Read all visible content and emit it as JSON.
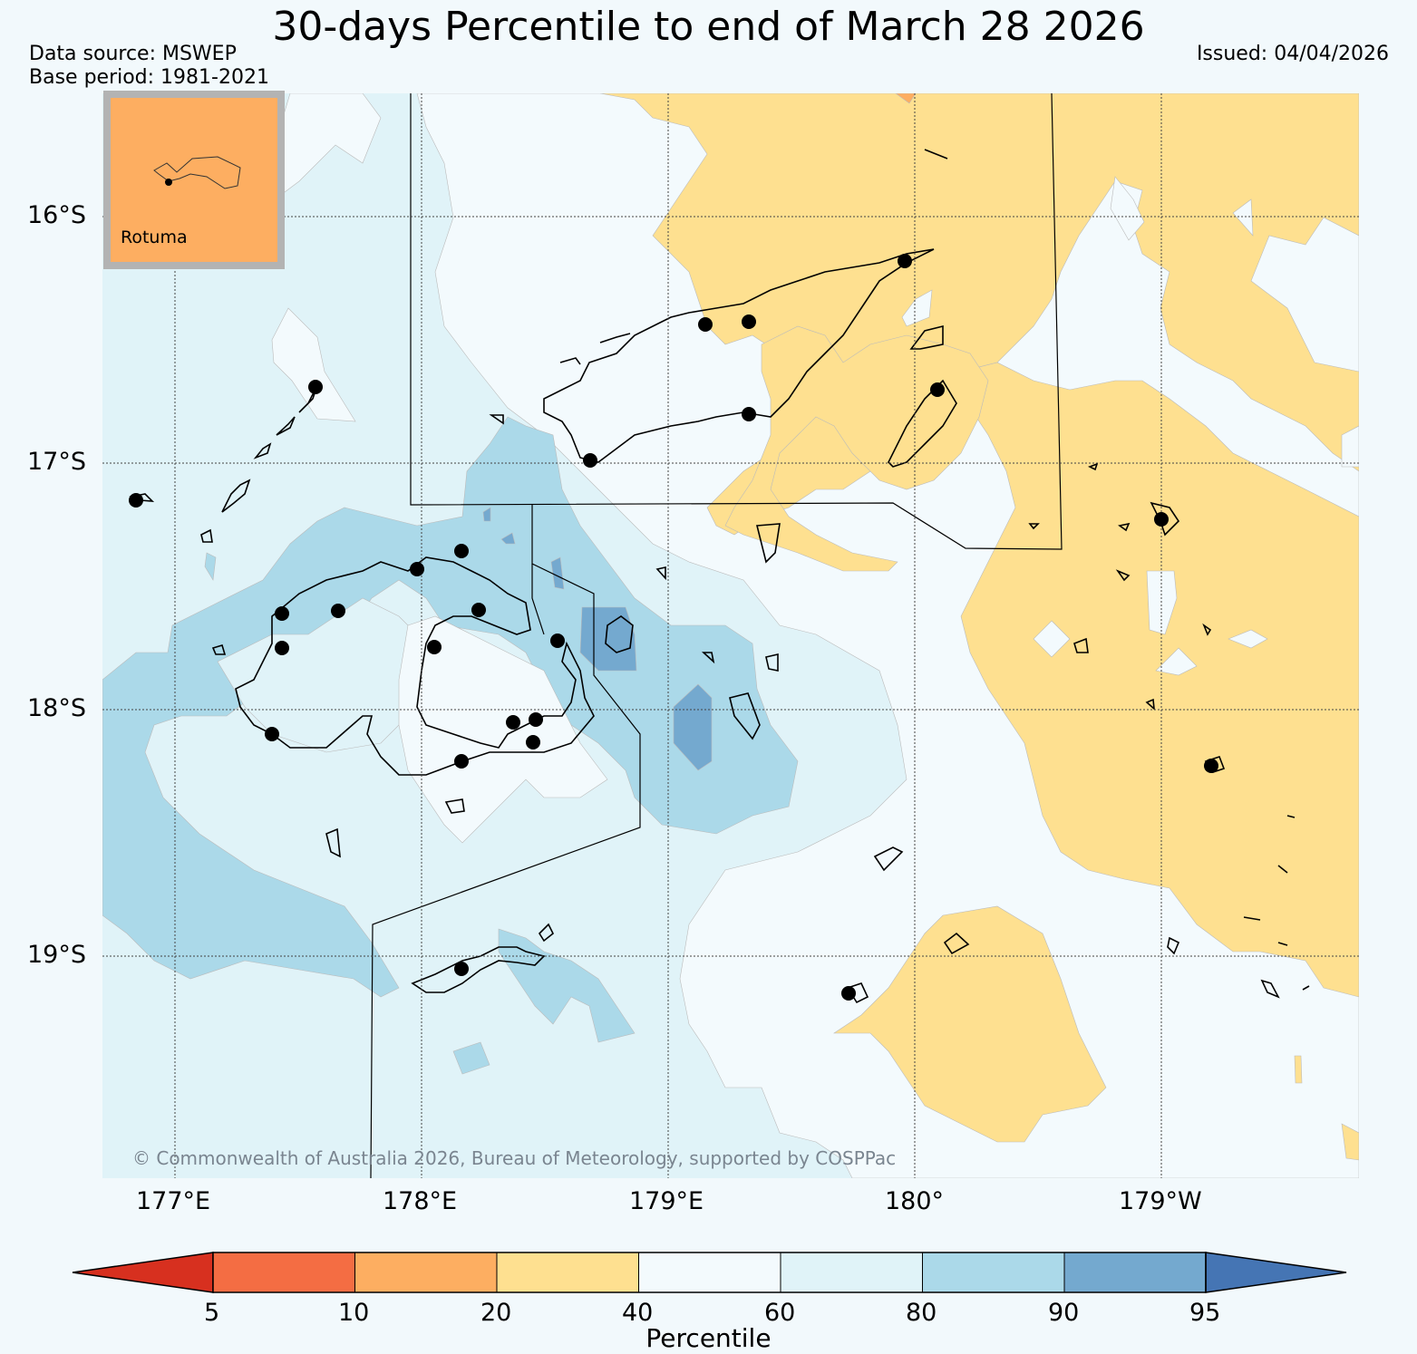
{
  "header": {
    "title": "30-days Percentile to end of March 28 2026",
    "data_source": "Data source: MSWEP",
    "base_period": "Base period: 1981-2021",
    "issued": "Issued: 04/04/2026"
  },
  "map": {
    "lat_labels": [
      "16°S",
      "17°S",
      "18°S",
      "19°S"
    ],
    "lon_labels": [
      "177°E",
      "178°E",
      "179°E",
      "180°",
      "179°W"
    ],
    "inset_label": "Rotuma",
    "copyright": "© Commonwealth of Australia 2026, Bureau of Meteorology, supported by COSPPac"
  },
  "colorbar": {
    "title": "Percentile",
    "ticks": [
      "5",
      "10",
      "20",
      "40",
      "60",
      "80",
      "90",
      "95"
    ],
    "colors": {
      "below_5": "#d7301f",
      "5_10": "#f46d43",
      "10_20": "#fdae61",
      "20_40": "#fee090",
      "40_60": "#f3fafd",
      "60_80": "#e0f3f8",
      "80_90": "#abd9e9",
      "90_95": "#74a9cf",
      "above_95": "#4575b4"
    }
  }
}
